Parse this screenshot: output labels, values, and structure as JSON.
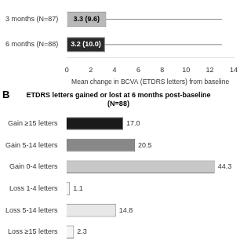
{
  "chart_data": [
    {
      "type": "bar",
      "orientation": "horizontal",
      "categories": [
        "3 months (N=87)",
        "6 months (N=88)"
      ],
      "values": [
        3.3,
        3.2
      ],
      "value_labels": [
        "3.3 (9.6)",
        "3.2 (10.0)"
      ],
      "data_labels": true,
      "whisker_ends": [
        13.0,
        13.0
      ],
      "colors": [
        "#b8b8b8",
        "#2a2a2a"
      ],
      "xlabel": "Mean change in BCVA (ETDRS letters) from baseline",
      "xlim": [
        0,
        14
      ],
      "xticks": [
        0,
        2,
        4,
        6,
        8,
        10,
        12,
        14
      ],
      "grid": false
    },
    {
      "type": "bar",
      "orientation": "horizontal",
      "title": [
        "ETDRS letters gained or lost at 6 months post-baseline",
        "(N=88)"
      ],
      "annotation": "B",
      "categories": [
        "Gain ≥15 letters",
        "Gain 5-14 letters",
        "Gain 0-4 letters",
        "Loss 1-4 letters",
        "Loss 5-14 letters",
        "Loss ≥15 letters"
      ],
      "values": [
        17.0,
        20.5,
        44.3,
        1.1,
        14.8,
        2.3
      ],
      "value_labels": [
        "17.0",
        "20.5",
        "44.3",
        "1.1",
        "14.8",
        "2.3"
      ],
      "data_labels": true,
      "colors": [
        "#1a1a1a",
        "#888888",
        "#c8c8c8",
        "#f5f5f5",
        "#e8e8e8",
        "#f5f5f5"
      ],
      "xlim": [
        0,
        50
      ],
      "tick_labels": "y",
      "grid": false
    }
  ]
}
